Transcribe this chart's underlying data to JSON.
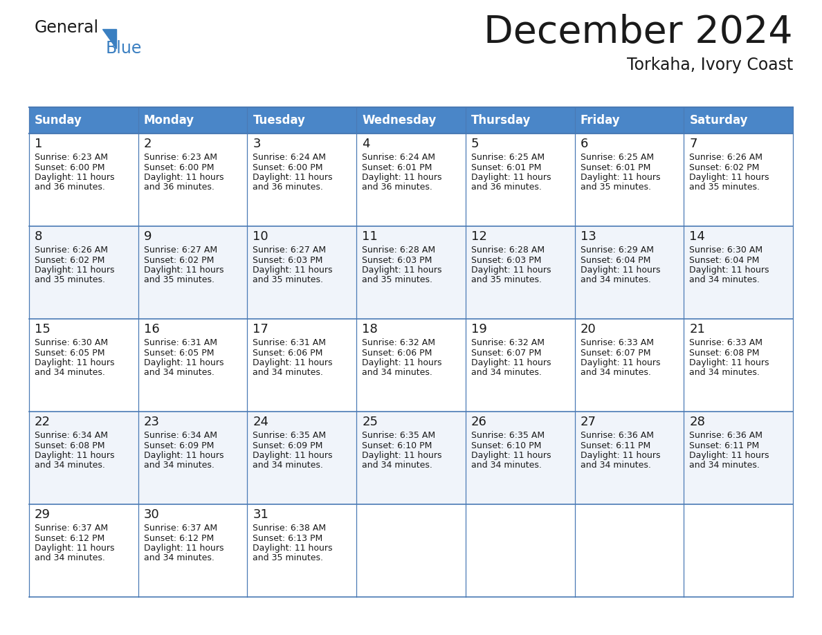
{
  "title": "December 2024",
  "subtitle": "Torkaha, Ivory Coast",
  "header_color": "#4A86C8",
  "header_text_color": "#FFFFFF",
  "border_color": "#4A7AB5",
  "text_color": "#1a1a1a",
  "logo_general_color": "#1a1a1a",
  "logo_blue_color": "#3A7FC1",
  "triangle_color": "#3A7FC1",
  "day_names": [
    "Sunday",
    "Monday",
    "Tuesday",
    "Wednesday",
    "Thursday",
    "Friday",
    "Saturday"
  ],
  "weeks": [
    [
      {
        "day": "1",
        "sunrise": "6:23 AM",
        "sunset": "6:00 PM",
        "daylight_line1": "11 hours",
        "daylight_line2": "36 minutes."
      },
      {
        "day": "2",
        "sunrise": "6:23 AM",
        "sunset": "6:00 PM",
        "daylight_line1": "11 hours",
        "daylight_line2": "36 minutes."
      },
      {
        "day": "3",
        "sunrise": "6:24 AM",
        "sunset": "6:00 PM",
        "daylight_line1": "11 hours",
        "daylight_line2": "36 minutes."
      },
      {
        "day": "4",
        "sunrise": "6:24 AM",
        "sunset": "6:01 PM",
        "daylight_line1": "11 hours",
        "daylight_line2": "36 minutes."
      },
      {
        "day": "5",
        "sunrise": "6:25 AM",
        "sunset": "6:01 PM",
        "daylight_line1": "11 hours",
        "daylight_line2": "36 minutes."
      },
      {
        "day": "6",
        "sunrise": "6:25 AM",
        "sunset": "6:01 PM",
        "daylight_line1": "11 hours",
        "daylight_line2": "35 minutes."
      },
      {
        "day": "7",
        "sunrise": "6:26 AM",
        "sunset": "6:02 PM",
        "daylight_line1": "11 hours",
        "daylight_line2": "35 minutes."
      }
    ],
    [
      {
        "day": "8",
        "sunrise": "6:26 AM",
        "sunset": "6:02 PM",
        "daylight_line1": "11 hours",
        "daylight_line2": "35 minutes."
      },
      {
        "day": "9",
        "sunrise": "6:27 AM",
        "sunset": "6:02 PM",
        "daylight_line1": "11 hours",
        "daylight_line2": "35 minutes."
      },
      {
        "day": "10",
        "sunrise": "6:27 AM",
        "sunset": "6:03 PM",
        "daylight_line1": "11 hours",
        "daylight_line2": "35 minutes."
      },
      {
        "day": "11",
        "sunrise": "6:28 AM",
        "sunset": "6:03 PM",
        "daylight_line1": "11 hours",
        "daylight_line2": "35 minutes."
      },
      {
        "day": "12",
        "sunrise": "6:28 AM",
        "sunset": "6:03 PM",
        "daylight_line1": "11 hours",
        "daylight_line2": "35 minutes."
      },
      {
        "day": "13",
        "sunrise": "6:29 AM",
        "sunset": "6:04 PM",
        "daylight_line1": "11 hours",
        "daylight_line2": "34 minutes."
      },
      {
        "day": "14",
        "sunrise": "6:30 AM",
        "sunset": "6:04 PM",
        "daylight_line1": "11 hours",
        "daylight_line2": "34 minutes."
      }
    ],
    [
      {
        "day": "15",
        "sunrise": "6:30 AM",
        "sunset": "6:05 PM",
        "daylight_line1": "11 hours",
        "daylight_line2": "34 minutes."
      },
      {
        "day": "16",
        "sunrise": "6:31 AM",
        "sunset": "6:05 PM",
        "daylight_line1": "11 hours",
        "daylight_line2": "34 minutes."
      },
      {
        "day": "17",
        "sunrise": "6:31 AM",
        "sunset": "6:06 PM",
        "daylight_line1": "11 hours",
        "daylight_line2": "34 minutes."
      },
      {
        "day": "18",
        "sunrise": "6:32 AM",
        "sunset": "6:06 PM",
        "daylight_line1": "11 hours",
        "daylight_line2": "34 minutes."
      },
      {
        "day": "19",
        "sunrise": "6:32 AM",
        "sunset": "6:07 PM",
        "daylight_line1": "11 hours",
        "daylight_line2": "34 minutes."
      },
      {
        "day": "20",
        "sunrise": "6:33 AM",
        "sunset": "6:07 PM",
        "daylight_line1": "11 hours",
        "daylight_line2": "34 minutes."
      },
      {
        "day": "21",
        "sunrise": "6:33 AM",
        "sunset": "6:08 PM",
        "daylight_line1": "11 hours",
        "daylight_line2": "34 minutes."
      }
    ],
    [
      {
        "day": "22",
        "sunrise": "6:34 AM",
        "sunset": "6:08 PM",
        "daylight_line1": "11 hours",
        "daylight_line2": "34 minutes."
      },
      {
        "day": "23",
        "sunrise": "6:34 AM",
        "sunset": "6:09 PM",
        "daylight_line1": "11 hours",
        "daylight_line2": "34 minutes."
      },
      {
        "day": "24",
        "sunrise": "6:35 AM",
        "sunset": "6:09 PM",
        "daylight_line1": "11 hours",
        "daylight_line2": "34 minutes."
      },
      {
        "day": "25",
        "sunrise": "6:35 AM",
        "sunset": "6:10 PM",
        "daylight_line1": "11 hours",
        "daylight_line2": "34 minutes."
      },
      {
        "day": "26",
        "sunrise": "6:35 AM",
        "sunset": "6:10 PM",
        "daylight_line1": "11 hours",
        "daylight_line2": "34 minutes."
      },
      {
        "day": "27",
        "sunrise": "6:36 AM",
        "sunset": "6:11 PM",
        "daylight_line1": "11 hours",
        "daylight_line2": "34 minutes."
      },
      {
        "day": "28",
        "sunrise": "6:36 AM",
        "sunset": "6:11 PM",
        "daylight_line1": "11 hours",
        "daylight_line2": "34 minutes."
      }
    ],
    [
      {
        "day": "29",
        "sunrise": "6:37 AM",
        "sunset": "6:12 PM",
        "daylight_line1": "11 hours",
        "daylight_line2": "34 minutes."
      },
      {
        "day": "30",
        "sunrise": "6:37 AM",
        "sunset": "6:12 PM",
        "daylight_line1": "11 hours",
        "daylight_line2": "34 minutes."
      },
      {
        "day": "31",
        "sunrise": "6:38 AM",
        "sunset": "6:13 PM",
        "daylight_line1": "11 hours",
        "daylight_line2": "35 minutes."
      },
      null,
      null,
      null,
      null
    ]
  ]
}
